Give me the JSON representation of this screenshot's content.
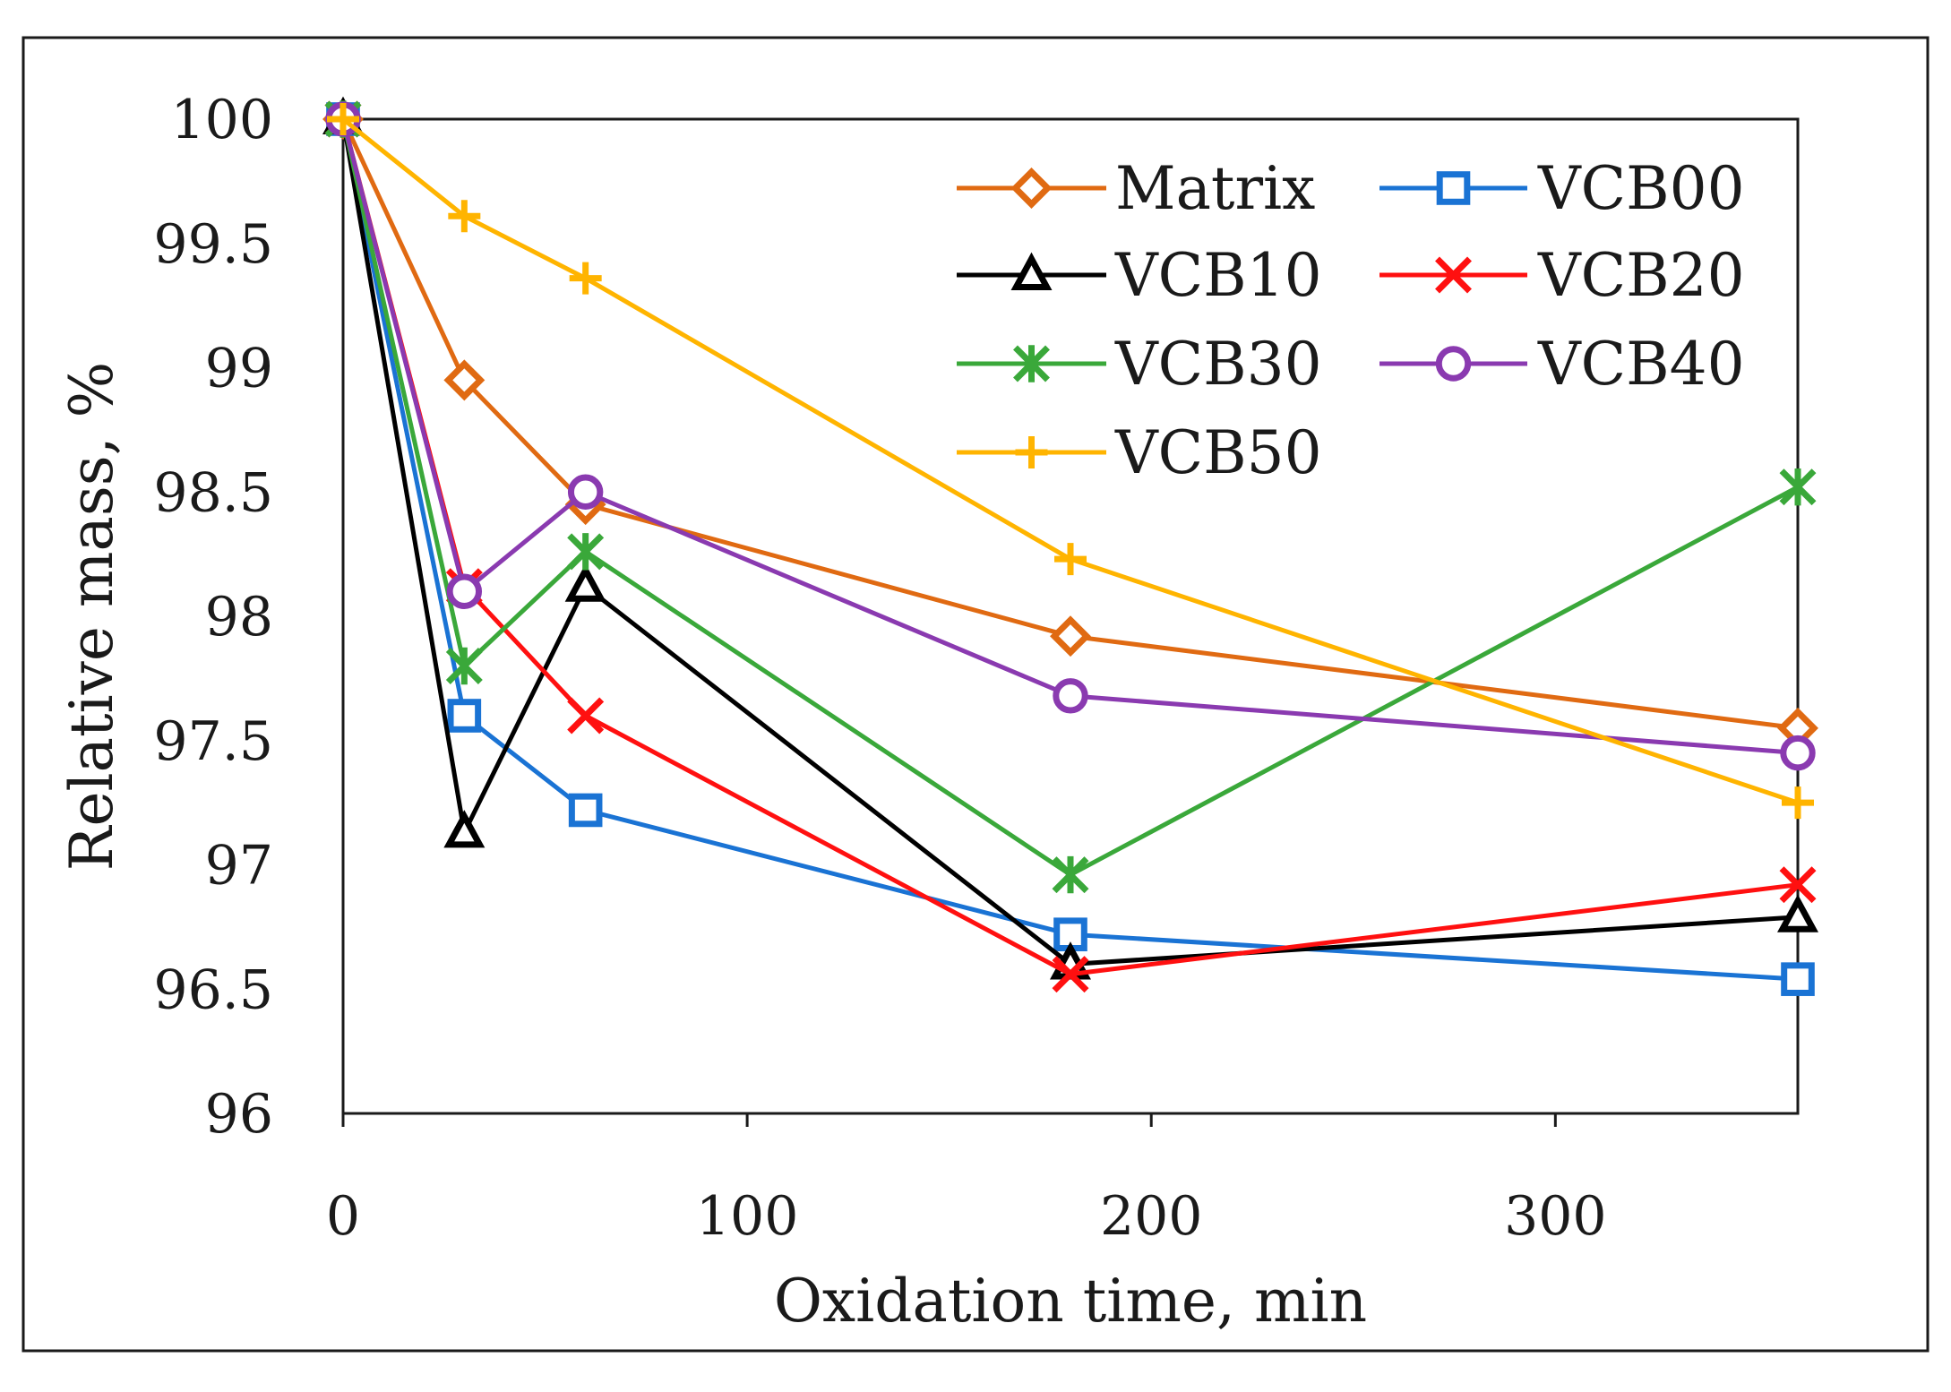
{
  "chart_data": {
    "type": "line",
    "title": "",
    "xlabel": "Oxidation time, min",
    "ylabel": "Relative mass, %",
    "xlim": [
      0,
      360
    ],
    "ylim": [
      96,
      100
    ],
    "xticks": [
      0,
      100,
      200,
      300
    ],
    "yticks": [
      96,
      96.5,
      97,
      97.5,
      98,
      98.5,
      99,
      99.5,
      100
    ],
    "xtick_labels": [
      "0",
      "100",
      "200",
      "300"
    ],
    "ytick_labels": [
      "96",
      "96.5",
      "97",
      "97.5",
      "98",
      "98.5",
      "99",
      "99.5",
      "100"
    ],
    "grid": false,
    "legend_position": "top-right",
    "x": [
      0,
      30,
      60,
      180,
      360
    ],
    "series": [
      {
        "name": "Matrix",
        "color": "#e06a12",
        "marker": "diamond",
        "values": [
          100,
          98.95,
          98.45,
          97.92,
          97.55
        ]
      },
      {
        "name": "VCB00",
        "color": "#1a73d4",
        "marker": "square",
        "values": [
          100,
          97.6,
          97.22,
          96.72,
          96.54
        ]
      },
      {
        "name": "VCB10",
        "color": "#000000",
        "marker": "triangle",
        "values": [
          100,
          97.13,
          98.12,
          96.6,
          96.79
        ]
      },
      {
        "name": "VCB20",
        "color": "#ff1010",
        "marker": "x",
        "values": [
          100,
          98.12,
          97.6,
          96.56,
          96.92
        ]
      },
      {
        "name": "VCB30",
        "color": "#3aa83a",
        "marker": "asterisk",
        "values": [
          100,
          97.8,
          98.26,
          96.96,
          98.52
        ]
      },
      {
        "name": "VCB40",
        "color": "#8a3ab0",
        "marker": "circle",
        "values": [
          100,
          98.1,
          98.5,
          97.68,
          97.45
        ]
      },
      {
        "name": "VCB50",
        "color": "#ffb400",
        "marker": "plus",
        "values": [
          100,
          99.61,
          99.36,
          98.23,
          97.25
        ]
      }
    ]
  }
}
